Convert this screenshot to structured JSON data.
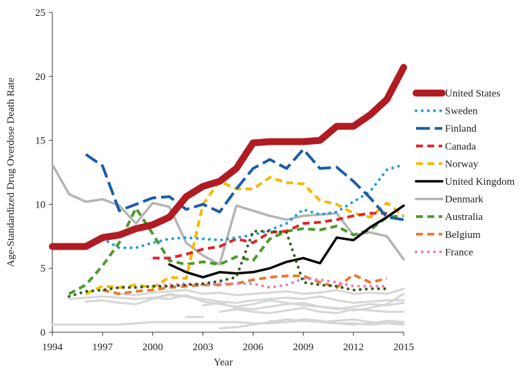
{
  "chart_data": {
    "type": "line",
    "title": "",
    "xlabel": "Year",
    "ylabel": "Age-Standardized Drug Overdose Death Rate",
    "xlim": [
      1994,
      2015
    ],
    "ylim": [
      0,
      25
    ],
    "x_ticks": [
      "1994",
      "1997",
      "2000",
      "2003",
      "2006",
      "2009",
      "2012",
      "2015"
    ],
    "y_ticks": [
      "0",
      "5",
      "10",
      "15",
      "20",
      "25"
    ],
    "grid": false,
    "legend_position": "right",
    "series": [
      {
        "name": "United States",
        "color": "#b01c22",
        "style": "solid",
        "width": 10,
        "x": [
          1994,
          1995,
          1996,
          1997,
          1998,
          1999,
          2000,
          2001,
          2002,
          2003,
          2004,
          2005,
          2006,
          2007,
          2008,
          2009,
          2010,
          2011,
          2012,
          2013,
          2014,
          2015
        ],
        "y": [
          6.7,
          6.7,
          6.7,
          7.4,
          7.6,
          8.1,
          8.4,
          9.0,
          10.6,
          11.4,
          11.8,
          12.8,
          14.8,
          14.9,
          14.9,
          14.9,
          15.0,
          16.1,
          16.1,
          17.0,
          18.2,
          20.7
        ]
      },
      {
        "name": "Sweden",
        "color": "#1f9ed6",
        "style": "dotted",
        "width": 4,
        "x": [
          1997,
          1998,
          1999,
          2000,
          2001,
          2002,
          2003,
          2004,
          2005,
          2006,
          2007,
          2008,
          2009,
          2010,
          2011,
          2012,
          2013,
          2014,
          2015
        ],
        "y": [
          7.3,
          6.6,
          6.6,
          7.0,
          7.3,
          7.4,
          7.3,
          7.2,
          7.4,
          7.6,
          8.0,
          8.5,
          9.6,
          9.2,
          9.4,
          10.2,
          11.0,
          12.7,
          13.1
        ]
      },
      {
        "name": "Finland",
        "color": "#1b5ca8",
        "style": "longdash",
        "width": 4,
        "x": [
          1996,
          1997,
          1998,
          1999,
          2000,
          2001,
          2002,
          2003,
          2004,
          2005,
          2006,
          2007,
          2008,
          2009,
          2010,
          2011,
          2012,
          2013,
          2014,
          2015
        ],
        "y": [
          13.9,
          13.0,
          9.5,
          10.0,
          10.5,
          10.6,
          9.6,
          10.0,
          9.4,
          11.2,
          12.8,
          13.5,
          12.8,
          14.3,
          12.8,
          12.9,
          11.8,
          10.5,
          9.0,
          8.8
        ]
      },
      {
        "name": "Canada",
        "color": "#e02626",
        "style": "dashed",
        "width": 4,
        "x": [
          2000,
          2001,
          2002,
          2003,
          2004,
          2005,
          2006,
          2007,
          2008,
          2009,
          2010,
          2011,
          2012,
          2013,
          2014
        ],
        "y": [
          5.8,
          5.8,
          6.1,
          6.5,
          6.7,
          7.3,
          7.0,
          7.8,
          7.9,
          8.5,
          8.6,
          8.8,
          9.1,
          9.3,
          9.3
        ]
      },
      {
        "name": "Norway",
        "color": "#f5b800",
        "style": "dashed",
        "width": 4,
        "x": [
          1996,
          1997,
          1998,
          1999,
          2000,
          2001,
          2002,
          2003,
          2004,
          2005,
          2006,
          2007,
          2008,
          2009,
          2010,
          2011,
          2012,
          2013,
          2014,
          2015
        ],
        "y": [
          3.0,
          3.6,
          3.5,
          3.7,
          3.5,
          4.3,
          4.2,
          10.0,
          11.8,
          11.2,
          11.2,
          12.1,
          11.7,
          11.6,
          10.3,
          10.0,
          9.3,
          9.0,
          10.1,
          9.1
        ]
      },
      {
        "name": "United Kingdom",
        "color": "#000000",
        "style": "solid",
        "width": 3.5,
        "x": [
          2001,
          2002,
          2003,
          2004,
          2005,
          2006,
          2007,
          2008,
          2009,
          2010,
          2011,
          2012,
          2013,
          2014,
          2015
        ],
        "y": [
          5.3,
          4.7,
          4.3,
          4.7,
          4.6,
          4.7,
          5.0,
          5.5,
          5.8,
          5.4,
          7.4,
          7.2,
          8.2,
          9.0,
          9.9
        ]
      },
      {
        "name": "Denmark",
        "color": "#b4b4b4",
        "style": "solid",
        "width": 3.5,
        "x": [
          1994,
          1995,
          1996,
          1997,
          1998,
          1999,
          2000,
          2001,
          2002,
          2003,
          2004,
          2005,
          2006,
          2007,
          2008,
          2009,
          2010,
          2011,
          2012,
          2013,
          2014,
          2015
        ],
        "y": [
          13.1,
          10.8,
          10.2,
          10.4,
          9.9,
          8.5,
          10.1,
          9.8,
          7.0,
          6.0,
          5.3,
          9.9,
          9.5,
          9.1,
          8.8,
          9.1,
          9.2,
          9.3,
          7.6,
          7.8,
          7.5,
          5.7
        ]
      },
      {
        "name": "Australia",
        "color": "#4a9a2c",
        "style": "dashed",
        "width": 4,
        "x": [
          1995,
          1996,
          1997,
          1998,
          1999,
          2000,
          2001,
          2002,
          2003,
          2004,
          2005,
          2006,
          2007,
          2008,
          2009,
          2010,
          2011,
          2012,
          2013,
          2014,
          2015
        ],
        "y": [
          3.0,
          3.7,
          5.2,
          7.0,
          9.7,
          7.7,
          5.6,
          5.3,
          5.5,
          5.3,
          5.9,
          5.6,
          7.3,
          7.9,
          8.1,
          8.0,
          8.3,
          7.6,
          8.0,
          9.0,
          9.1
        ]
      },
      {
        "name": "",
        "color": "#2e5a1e",
        "style": "dotted",
        "width": 4,
        "x": [
          1995,
          1996,
          1997,
          1998,
          1999,
          2000,
          2001,
          2002,
          2003,
          2004,
          2005,
          2006,
          2007,
          2008,
          2009,
          2010,
          2011,
          2012,
          2013,
          2014
        ],
        "y": [
          2.8,
          3.2,
          3.3,
          3.5,
          3.5,
          3.6,
          3.6,
          3.7,
          3.8,
          4.0,
          4.3,
          7.9,
          7.9,
          7.8,
          3.9,
          3.7,
          3.6,
          3.3,
          3.4,
          3.4
        ]
      },
      {
        "name": "Belgium",
        "color": "#e57b33",
        "style": "dashed",
        "width": 4,
        "x": [
          1997,
          1998,
          1999,
          2000,
          2001,
          2002,
          2003,
          2004,
          2005,
          2006,
          2007,
          2008,
          2009,
          2010,
          2011,
          2012,
          2013,
          2014
        ],
        "y": [
          3.3,
          3.0,
          3.2,
          3.3,
          3.5,
          3.6,
          3.7,
          3.7,
          3.8,
          4.1,
          4.3,
          4.4,
          4.4,
          3.9,
          3.5,
          4.5,
          3.9,
          4.2
        ]
      },
      {
        "name": "France",
        "color": "#e880b8",
        "style": "dotted",
        "width": 4,
        "x": [
          2000,
          2001,
          2002,
          2003,
          2004,
          2005,
          2006,
          2007,
          2008,
          2009,
          2010,
          2011,
          2012,
          2013,
          2014
        ],
        "y": [
          3.6,
          3.7,
          3.8,
          3.7,
          3.8,
          3.8,
          3.8,
          3.5,
          3.7,
          4.2,
          4.1,
          3.9,
          3.6,
          3.6,
          3.6
        ]
      },
      {
        "name": "",
        "color": "#d6d6d6",
        "style": "solid",
        "width": 3,
        "x": [
          1996,
          1997,
          1998,
          1999,
          2000,
          2001,
          2002,
          2003,
          2004,
          2005,
          2006,
          2007,
          2008,
          2009,
          2010,
          2011,
          2012,
          2013,
          2014,
          2015
        ],
        "y": [
          2.4,
          2.5,
          2.3,
          2.2,
          2.6,
          3.0,
          2.8,
          2.6,
          2.4,
          2.3,
          2.5,
          2.6,
          2.7,
          2.6,
          2.8,
          2.5,
          2.3,
          2.4,
          2.5,
          2.5
        ]
      },
      {
        "name": "",
        "color": "#d6d6d6",
        "style": "solid",
        "width": 3,
        "x": [
          1998,
          1999,
          2000,
          2001,
          2002,
          2003,
          2004,
          2005,
          2006,
          2007,
          2008,
          2009,
          2010,
          2011,
          2012,
          2013,
          2014,
          2015
        ],
        "y": [
          3.0,
          2.9,
          3.1,
          3.2,
          3.3,
          3.0,
          3.1,
          2.9,
          3.0,
          3.1,
          3.2,
          3.0,
          3.1,
          3.3,
          3.0,
          3.1,
          3.0,
          3.4
        ]
      },
      {
        "name": "",
        "color": "#d6d6d6",
        "style": "solid",
        "width": 3,
        "x": [
          2000,
          2001,
          2002,
          2003,
          2004,
          2005,
          2006,
          2007,
          2008,
          2009,
          2010,
          2011,
          2012,
          2013,
          2014,
          2015
        ],
        "y": [
          2.7,
          2.6,
          2.9,
          2.4,
          2.2,
          2.0,
          2.2,
          2.5,
          2.3,
          2.1,
          2.0,
          1.8,
          2.0,
          2.2,
          2.1,
          2.3
        ]
      },
      {
        "name": "",
        "color": "#d6d6d6",
        "style": "solid",
        "width": 3,
        "x": [
          2003,
          2004,
          2005,
          2006,
          2007,
          2008,
          2009,
          2010,
          2011,
          2012,
          2013,
          2014,
          2015
        ],
        "y": [
          2.1,
          2.3,
          1.9,
          1.8,
          2.0,
          2.2,
          2.3,
          2.0,
          1.9,
          1.7,
          1.9,
          2.2,
          3.0
        ]
      },
      {
        "name": "",
        "color": "#d6d6d6",
        "style": "solid",
        "width": 3,
        "x": [
          2004,
          2005,
          2006,
          2007,
          2008,
          2009,
          2010,
          2011,
          2012,
          2013,
          2014,
          2015
        ],
        "y": [
          1.6,
          1.8,
          1.6,
          1.5,
          1.7,
          1.9,
          1.6,
          1.5,
          1.8,
          1.7,
          1.6,
          1.6
        ]
      },
      {
        "name": "",
        "color": "#d6d6d6",
        "style": "solid",
        "width": 3,
        "x": [
          1995,
          1996,
          1997,
          1998,
          1999,
          2000,
          2001,
          2002,
          2003
        ],
        "y": [
          2.6,
          2.7,
          2.8,
          2.7,
          2.6,
          2.7,
          2.9,
          2.8,
          2.5
        ]
      },
      {
        "name": "",
        "color": "#d6d6d6",
        "style": "solid",
        "width": 3,
        "x": [
          2002,
          2003
        ],
        "y": [
          1.2,
          1.2
        ]
      },
      {
        "name": "",
        "color": "#d6d6d6",
        "style": "solid",
        "width": 3,
        "x": [
          1994,
          1995,
          1996,
          1997,
          1998,
          1999,
          2000,
          2001,
          2002,
          2003,
          2004,
          2005,
          2006,
          2007,
          2008,
          2009,
          2010,
          2011,
          2012,
          2013,
          2014,
          2015
        ],
        "y": [
          0.6,
          0.6,
          0.6,
          0.6,
          0.6,
          0.7,
          0.8,
          0.8,
          0.8,
          0.8,
          0.8,
          0.8,
          0.7,
          0.7,
          0.8,
          0.9,
          0.8,
          0.7,
          0.7,
          0.6,
          0.7,
          0.6
        ]
      },
      {
        "name": "",
        "color": "#d6d6d6",
        "style": "solid",
        "width": 3,
        "x": [
          2004,
          2005,
          2006,
          2007,
          2008,
          2009,
          2010,
          2011,
          2012,
          2013,
          2014,
          2015
        ],
        "y": [
          0.3,
          0.4,
          0.6,
          0.8,
          1.0,
          0.9,
          0.8,
          0.9,
          1.0,
          0.8,
          0.7,
          0.8
        ]
      },
      {
        "name": "",
        "color": "#d6d6d6",
        "style": "solid",
        "width": 3,
        "x": [
          2007,
          2008,
          2009,
          2010,
          2011,
          2012,
          2013,
          2014,
          2015
        ],
        "y": [
          0.9,
          0.8,
          1.0,
          0.9,
          0.7,
          0.6,
          0.7,
          0.9,
          0.8
        ]
      }
    ],
    "legend": [
      {
        "label": "United States",
        "color": "#b01c22",
        "style": "solid",
        "width": 10
      },
      {
        "label": "Sweden",
        "color": "#1f9ed6",
        "style": "dotted",
        "width": 4
      },
      {
        "label": "Finland",
        "color": "#1b5ca8",
        "style": "longdash",
        "width": 4
      },
      {
        "label": "Canada",
        "color": "#e02626",
        "style": "dashed",
        "width": 4
      },
      {
        "label": "Norway",
        "color": "#f5b800",
        "style": "dashed",
        "width": 4
      },
      {
        "label": "United Kingdom",
        "color": "#000000",
        "style": "solid",
        "width": 3.5
      },
      {
        "label": "Denmark",
        "color": "#b4b4b4",
        "style": "solid",
        "width": 3.5
      },
      {
        "label": "Australia",
        "color": "#4a9a2c",
        "style": "dashed",
        "width": 4
      },
      {
        "label": "Belgium",
        "color": "#e57b33",
        "style": "dashed",
        "width": 4
      },
      {
        "label": "France",
        "color": "#e880b8",
        "style": "dotted",
        "width": 4
      }
    ]
  }
}
